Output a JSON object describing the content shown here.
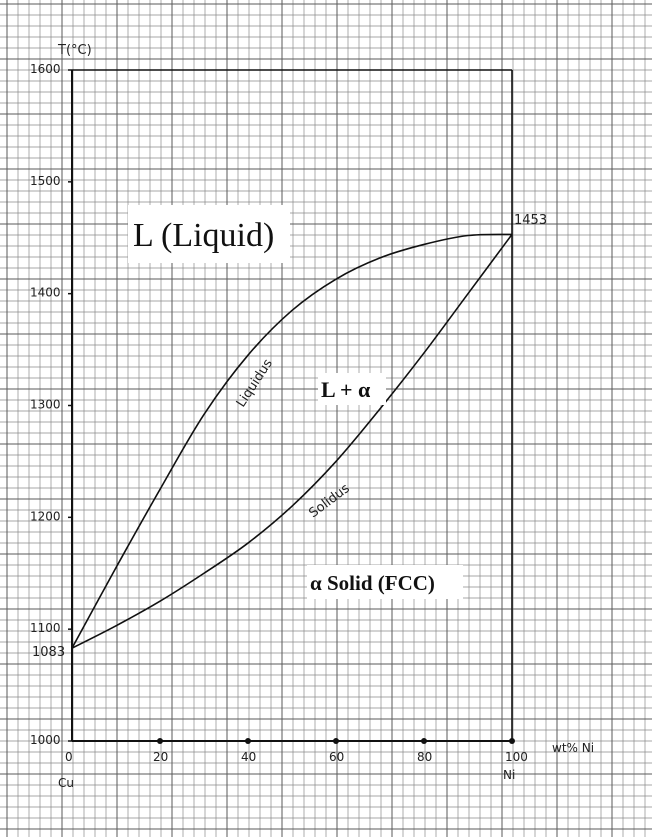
{
  "chart_data": {
    "type": "line",
    "title": "",
    "xlabel": "wt% Ni",
    "ylabel": "T(°C)",
    "xlim": [
      0,
      100
    ],
    "ylim": [
      1000,
      1600
    ],
    "x_ticks": [
      "0",
      "20",
      "40",
      "60",
      "80",
      "100"
    ],
    "y_ticks": [
      "1000",
      "1100",
      "1200",
      "1300",
      "1400",
      "1500",
      "1600"
    ],
    "x_left_label": "Cu",
    "x_right_label": "Ni",
    "grid": true,
    "series": [
      {
        "name": "Liquidus",
        "x": [
          0,
          10,
          20,
          30,
          40,
          50,
          60,
          70,
          80,
          90,
          100
        ],
        "y": [
          1083,
          1155,
          1225,
          1292,
          1345,
          1385,
          1413,
          1432,
          1444,
          1452,
          1453
        ]
      },
      {
        "name": "Solidus",
        "x": [
          0,
          10,
          20,
          30,
          40,
          50,
          60,
          70,
          80,
          90,
          100
        ],
        "y": [
          1083,
          1103,
          1125,
          1150,
          1177,
          1210,
          1250,
          1297,
          1347,
          1400,
          1453
        ]
      }
    ],
    "annotations": {
      "cu_melting": "1083",
      "ni_melting": "1453",
      "liquid_region": "L (Liquid)",
      "two_phase_region": "L + α",
      "solid_region": "α Solid (FCC)"
    }
  }
}
